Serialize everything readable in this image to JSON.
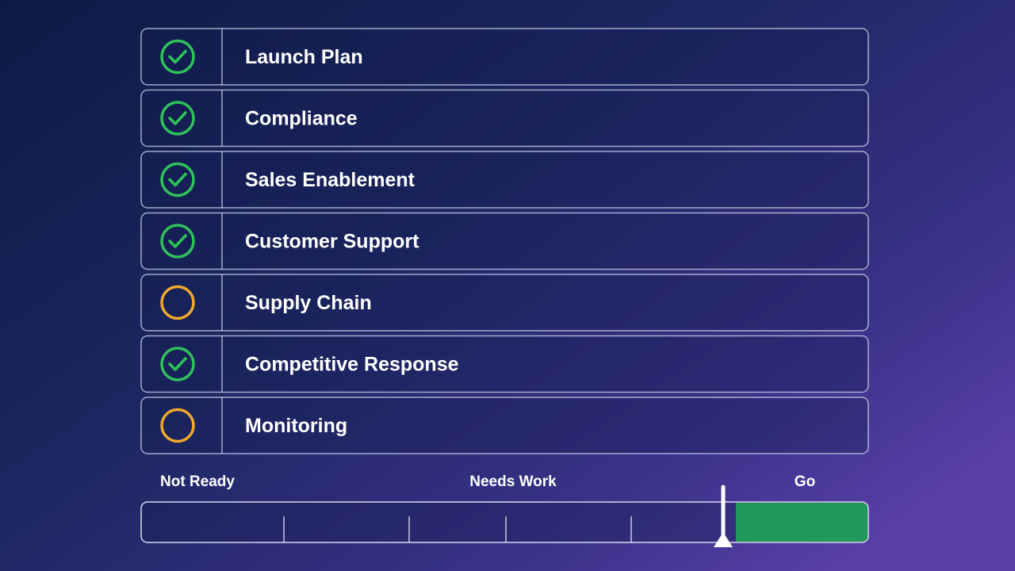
{
  "checklist": {
    "items": [
      "Launch Plan",
      "Compliance",
      "Sales Enablement",
      "Customer Support",
      "Supply Chain",
      "Competitive Response",
      "Monitoring"
    ]
  },
  "gauge": {
    "labels": [
      "Not Ready",
      "Needs Work",
      "Go"
    ]
  }
}
